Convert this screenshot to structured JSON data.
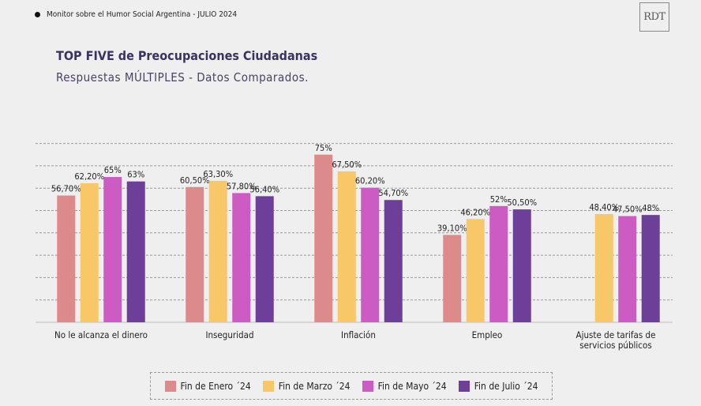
{
  "header": {
    "text": "Monitor sobre el Humor Social Argentina  - JULIO 2024",
    "logo": "RDT"
  },
  "title": "TOP FIVE de Preocupaciones Ciudadanas",
  "subtitle": "Respuestas MÚLTIPLES - Datos Comparados.",
  "chart_data": {
    "type": "bar",
    "categories": [
      "No le alcanza el dinero",
      "Inseguridad",
      "Inflación",
      "Empleo",
      "Ajuste de tarifas de servicios públicos"
    ],
    "category_lines": [
      [
        "No le alcanza el dinero"
      ],
      [
        "Inseguridad"
      ],
      [
        "Inflación"
      ],
      [
        "Empleo"
      ],
      [
        "Ajuste de tarifas de",
        "servicios públicos"
      ]
    ],
    "series": [
      {
        "name": "Fin de Enero ´24",
        "color": "#dd8a8a",
        "values": [
          56.7,
          60.5,
          75,
          39.1,
          null
        ],
        "labels": [
          "56,70%",
          "60,50%",
          "75%",
          "39,10%",
          null
        ]
      },
      {
        "name": "Fin de Marzo ´24",
        "color": "#f7c768",
        "values": [
          62.2,
          63.3,
          67.5,
          46.2,
          48.4
        ],
        "labels": [
          "62,20%",
          "63,30%",
          "67,50%",
          "46,20%",
          "48,40%"
        ]
      },
      {
        "name": "Fin de Mayo ´24",
        "color": "#cc5cc4",
        "values": [
          65,
          57.8,
          60.2,
          52,
          47.5
        ],
        "labels": [
          "65%",
          "57,80%",
          "60,20%",
          "52%",
          "47,50%"
        ]
      },
      {
        "name": "Fin de Julio ´24",
        "color": "#6e3f98",
        "values": [
          63,
          56.4,
          54.7,
          50.5,
          48
        ],
        "labels": [
          "63%",
          "56,40%",
          "54,70%",
          "50,50%",
          "48%"
        ]
      }
    ],
    "ylim": [
      0,
      80
    ],
    "grid": true,
    "y_tick_labels": false,
    "legend_position": "bottom"
  }
}
